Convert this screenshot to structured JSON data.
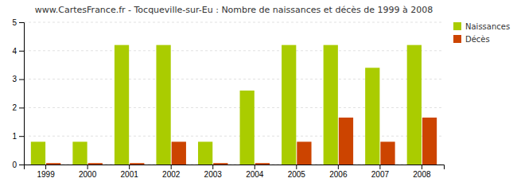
{
  "chart_data": {
    "type": "bar",
    "title": "www.CartesFrance.fr - Tocqueville-sur-Eu : Nombre de naissances et décès de 1999 à 2008",
    "categories": [
      "1999",
      "2000",
      "2001",
      "2002",
      "2003",
      "2004",
      "2005",
      "2006",
      "2007",
      "2008"
    ],
    "series": [
      {
        "name": "Naissances",
        "color": "#aacc00",
        "values": [
          0.8,
          0.8,
          4.2,
          4.2,
          0.8,
          2.6,
          4.2,
          4.2,
          3.4,
          4.2
        ]
      },
      {
        "name": "Décès",
        "color": "#cc4400",
        "values": [
          0.05,
          0.05,
          0.05,
          0.8,
          0.05,
          0.05,
          0.8,
          1.65,
          0.8,
          1.65
        ]
      }
    ],
    "ylim": [
      0,
      5
    ],
    "yticks": [
      0,
      1,
      2,
      3,
      4,
      5
    ],
    "grid": true,
    "legend": "upper right"
  }
}
